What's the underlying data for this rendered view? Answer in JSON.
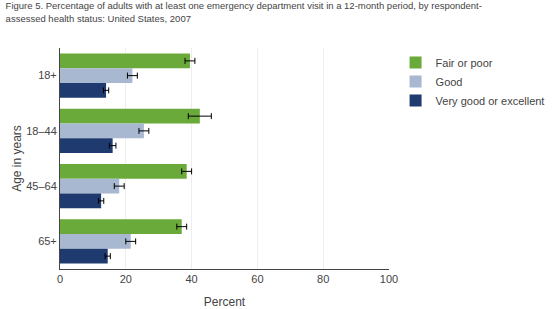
{
  "chart_data": {
    "type": "bar",
    "orientation": "horizontal",
    "title": "Figure 5. Percentage of adults with at least one emergency department visit in a 12-month period, by respondent-",
    "subtitle": "assessed health status: United States, 2007",
    "xlabel": "Percent",
    "ylabel": "Age in years",
    "categories": [
      "18+",
      "18–44",
      "45–64",
      "65+"
    ],
    "series": [
      {
        "name": "Fair or poor",
        "color": "#6aaa3a",
        "values": [
          39.5,
          42.5,
          38.5,
          37.0
        ],
        "errors": [
          1.5,
          3.5,
          1.5,
          1.5
        ]
      },
      {
        "name": "Good",
        "color": "#a8b8d0",
        "values": [
          22.0,
          25.5,
          18.0,
          21.5
        ],
        "errors": [
          1.5,
          1.5,
          1.5,
          1.5
        ]
      },
      {
        "name": "Very good or excellent",
        "color": "#1f3a6e",
        "values": [
          14.0,
          16.0,
          12.5,
          14.5
        ],
        "errors": [
          0.8,
          1.0,
          0.8,
          0.8
        ]
      }
    ],
    "xlim": [
      0,
      100
    ],
    "xticks": [
      0,
      20,
      40,
      60,
      80,
      100
    ],
    "grid": true,
    "legend": "upper right"
  }
}
